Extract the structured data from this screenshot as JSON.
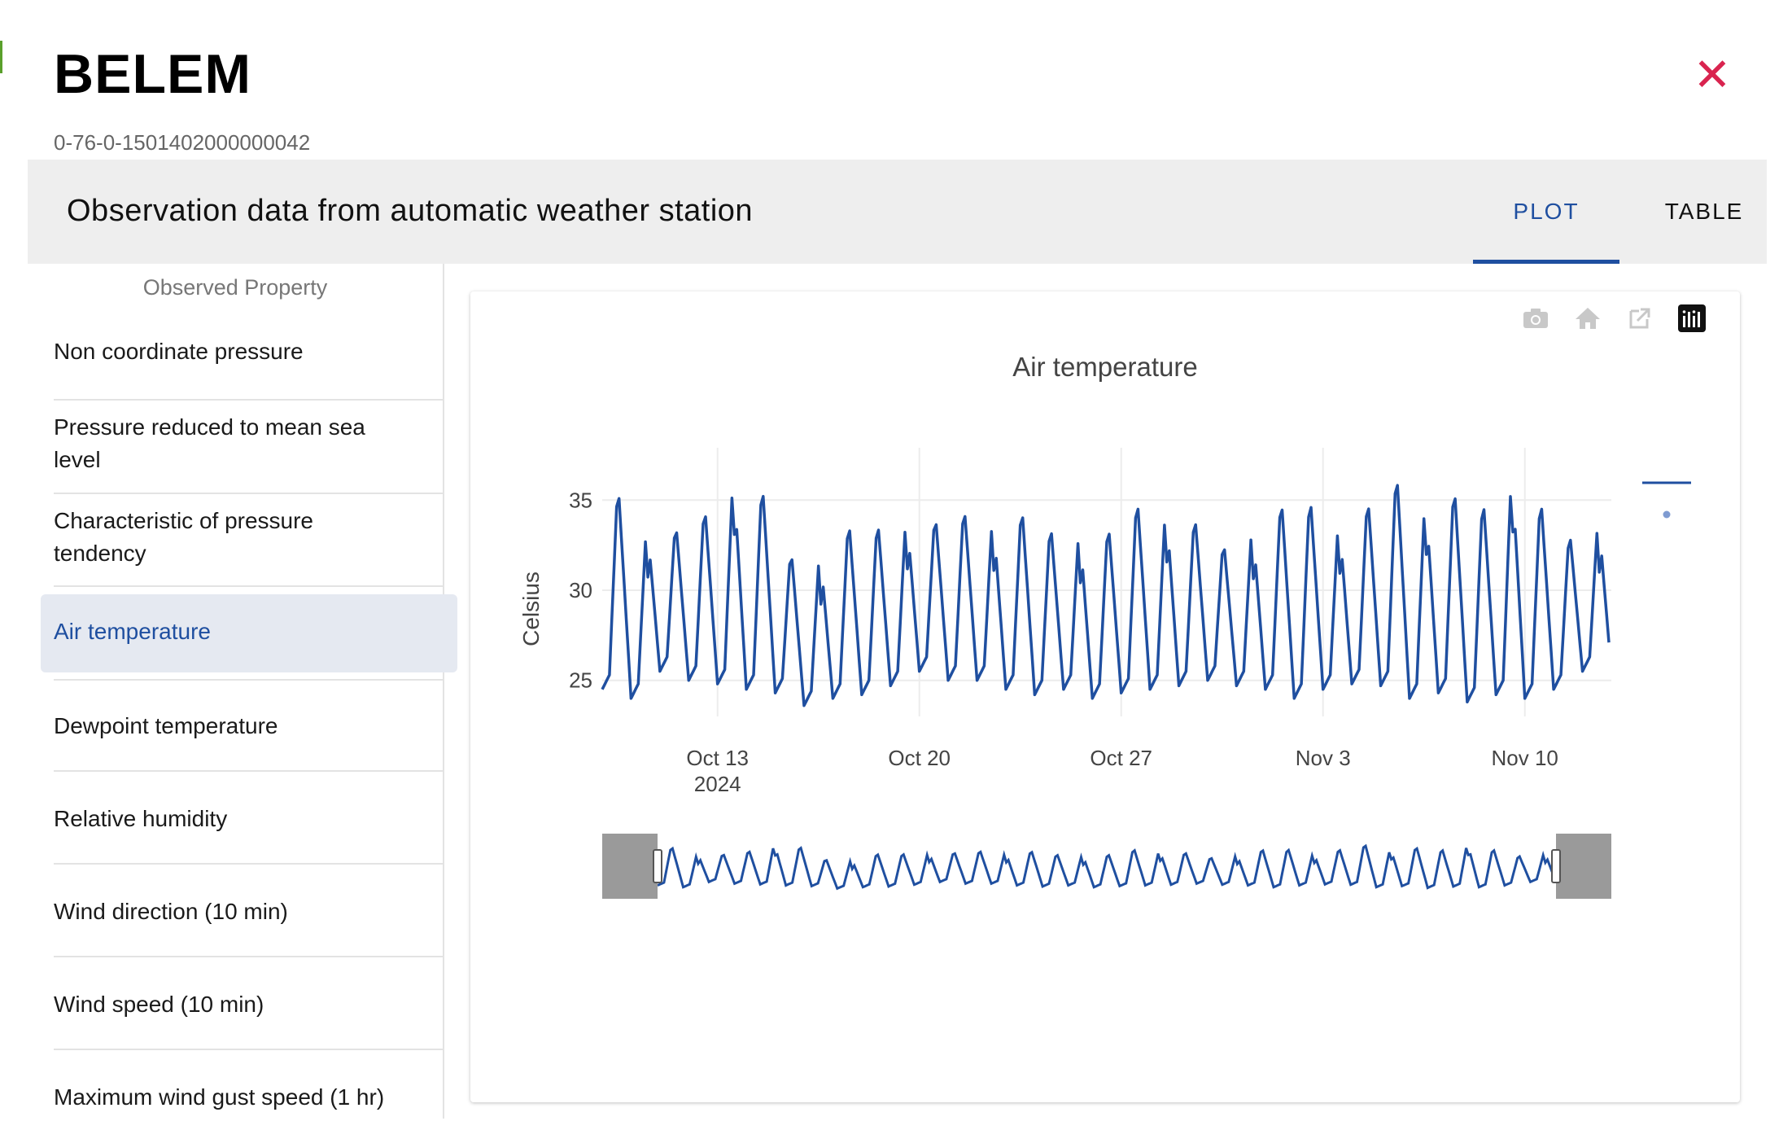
{
  "station": {
    "name": "BELEM",
    "id": "0-76-0-1501402000000042"
  },
  "header": {
    "title": "Observation data from automatic weather station"
  },
  "tabs": [
    {
      "label": "PLOT",
      "active": true
    },
    {
      "label": "TABLE",
      "active": false
    }
  ],
  "sidebar": {
    "heading": "Observed Property",
    "items": [
      {
        "label": "Non coordinate pressure"
      },
      {
        "label": "Pressure reduced to mean sea level"
      },
      {
        "label": "Characteristic of pressure tendency"
      },
      {
        "label": "Air temperature",
        "active": true
      },
      {
        "label": "Dewpoint temperature"
      },
      {
        "label": "Relative humidity"
      },
      {
        "label": "Wind direction (10 min)"
      },
      {
        "label": "Wind speed (10 min)"
      },
      {
        "label": "Maximum wind gust speed (1 hr)"
      }
    ]
  },
  "modebar": [
    "camera-icon",
    "home-icon",
    "external-link-icon",
    "plotly-logo-icon"
  ],
  "colors": {
    "accent": "#1f4fa0",
    "line": "#1f4fa0",
    "close": "#d9244f",
    "header_bg": "#eeeeee"
  },
  "chart_data": {
    "type": "line",
    "title": "Air temperature",
    "ylabel": "Celsius",
    "xlabel": "",
    "x_start": "2024-10-09",
    "x_end": "2024-11-13",
    "ylim": [
      23,
      37
    ],
    "yticks": [
      25,
      30,
      35
    ],
    "xticks": [
      {
        "date": "2024-10-13",
        "label": "Oct 13",
        "sublabel": "2024"
      },
      {
        "date": "2024-10-20",
        "label": "Oct 20",
        "sublabel": ""
      },
      {
        "date": "2024-10-27",
        "label": "Oct 27",
        "sublabel": ""
      },
      {
        "date": "2024-11-03",
        "label": "Nov 3",
        "sublabel": ""
      },
      {
        "date": "2024-11-10",
        "label": "Nov 10",
        "sublabel": ""
      }
    ],
    "grid": true,
    "legend": "right",
    "rangeslider": true,
    "series": [
      {
        "daily": [
          {
            "date": "2024-10-09",
            "max": 36.2,
            "min": 24.5
          },
          {
            "date": "2024-10-10",
            "max": 34.0,
            "min": 24.0
          },
          {
            "date": "2024-10-11",
            "max": 34.0,
            "min": 25.5
          },
          {
            "date": "2024-10-12",
            "max": 35.0,
            "min": 25.0
          },
          {
            "date": "2024-10-13",
            "max": 36.7,
            "min": 24.8
          },
          {
            "date": "2024-10-14",
            "max": 36.3,
            "min": 24.5
          },
          {
            "date": "2024-10-15",
            "max": 32.5,
            "min": 24.3
          },
          {
            "date": "2024-10-16",
            "max": 32.5,
            "min": 23.6
          },
          {
            "date": "2024-10-17",
            "max": 34.2,
            "min": 24.0
          },
          {
            "date": "2024-10-18",
            "max": 34.2,
            "min": 24.2
          },
          {
            "date": "2024-10-19",
            "max": 34.5,
            "min": 24.7
          },
          {
            "date": "2024-10-20",
            "max": 34.5,
            "min": 25.5
          },
          {
            "date": "2024-10-21",
            "max": 35.0,
            "min": 25.0
          },
          {
            "date": "2024-10-22",
            "max": 34.5,
            "min": 25.0
          },
          {
            "date": "2024-10-23",
            "max": 35.0,
            "min": 24.5
          },
          {
            "date": "2024-10-24",
            "max": 34.0,
            "min": 24.2
          },
          {
            "date": "2024-10-25",
            "max": 33.8,
            "min": 24.5
          },
          {
            "date": "2024-10-26",
            "max": 34.0,
            "min": 24.0
          },
          {
            "date": "2024-10-27",
            "max": 35.5,
            "min": 24.3
          },
          {
            "date": "2024-10-28",
            "max": 35.0,
            "min": 24.5
          },
          {
            "date": "2024-10-29",
            "max": 34.5,
            "min": 24.7
          },
          {
            "date": "2024-10-30",
            "max": 33.0,
            "min": 25.0
          },
          {
            "date": "2024-10-31",
            "max": 34.0,
            "min": 24.7
          },
          {
            "date": "2024-11-01",
            "max": 35.5,
            "min": 24.5
          },
          {
            "date": "2024-11-02",
            "max": 35.6,
            "min": 24.0
          },
          {
            "date": "2024-11-03",
            "max": 34.3,
            "min": 24.5
          },
          {
            "date": "2024-11-04",
            "max": 35.5,
            "min": 24.8
          },
          {
            "date": "2024-11-05",
            "max": 37.0,
            "min": 24.7
          },
          {
            "date": "2024-11-06",
            "max": 35.5,
            "min": 24.0
          },
          {
            "date": "2024-11-07",
            "max": 36.2,
            "min": 24.3
          },
          {
            "date": "2024-11-08",
            "max": 35.5,
            "min": 23.8
          },
          {
            "date": "2024-11-09",
            "max": 36.9,
            "min": 24.2
          },
          {
            "date": "2024-11-10",
            "max": 35.5,
            "min": 24.0
          },
          {
            "date": "2024-11-11",
            "max": 33.5,
            "min": 24.5
          },
          {
            "date": "2024-11-12",
            "max": 34.3,
            "min": 25.5
          }
        ]
      }
    ]
  }
}
